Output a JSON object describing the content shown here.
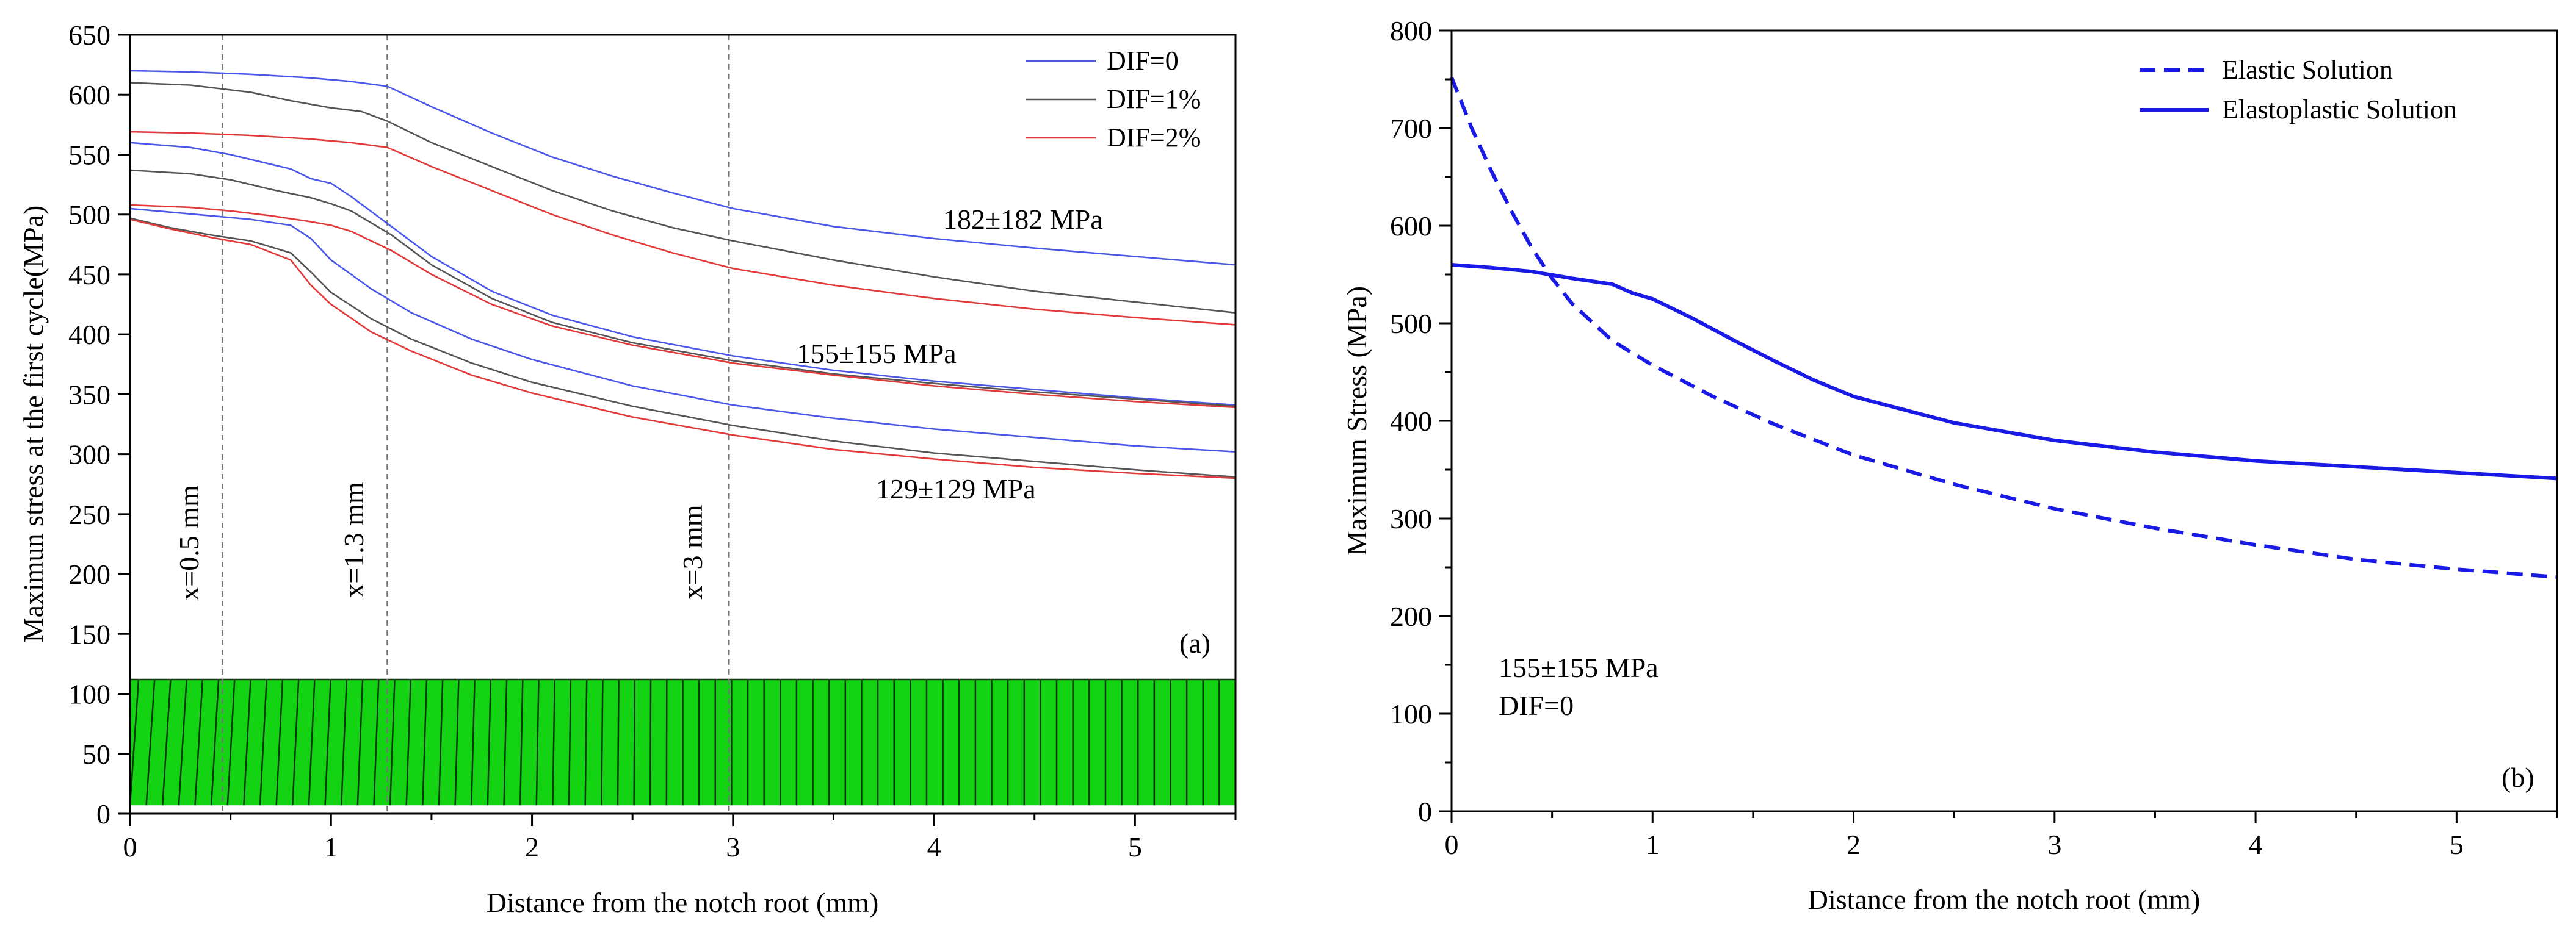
{
  "chart_data": [
    {
      "type": "line",
      "panel_label": "(a)",
      "xlabel": "Distance from the notch root (mm)",
      "ylabel": "Maximun stress at the first cycle(MPa)",
      "xlim": [
        0,
        5.5
      ],
      "ylim": [
        0,
        650
      ],
      "xticks": [
        0,
        1,
        2,
        3,
        4,
        5
      ],
      "yticks": [
        0,
        50,
        100,
        150,
        200,
        250,
        300,
        350,
        400,
        450,
        500,
        550,
        600,
        650
      ],
      "legend": {
        "placement": "top-right",
        "entries": [
          {
            "label": "DIF=0",
            "color": "#4a57e8"
          },
          {
            "label": "DIF=1%",
            "color": "#555555"
          },
          {
            "label": "DIF=2%",
            "color": "#e23a3a"
          }
        ]
      },
      "reference_lines": [
        {
          "x": 0.46,
          "label": "x=0.5 mm"
        },
        {
          "x": 1.28,
          "label": "x=1.3 mm"
        },
        {
          "x": 2.98,
          "label": "x=3 mm"
        }
      ],
      "group_labels": [
        "182±182 MPa",
        "155±155 MPa",
        "129±129 MPa"
      ],
      "mesh_band": {
        "ymin": 7,
        "ymax": 112,
        "color": "#13d313"
      },
      "series": [
        {
          "name": "182±182 MPa, DIF=0",
          "color": "#4a57e8",
          "x": [
            0,
            0.3,
            0.6,
            0.9,
            1.1,
            1.28,
            1.5,
            1.8,
            2.1,
            2.4,
            2.7,
            3.0,
            3.5,
            4.0,
            4.5,
            5.0,
            5.5
          ],
          "y": [
            620,
            619,
            617,
            614,
            611,
            607,
            590,
            568,
            548,
            532,
            518,
            505,
            490,
            480,
            472,
            465,
            458
          ]
        },
        {
          "name": "182±182 MPa, DIF=1%",
          "color": "#555555",
          "x": [
            0,
            0.3,
            0.6,
            0.8,
            1.0,
            1.15,
            1.28,
            1.5,
            1.8,
            2.1,
            2.4,
            2.7,
            3.0,
            3.5,
            4.0,
            4.5,
            5.0,
            5.5
          ],
          "y": [
            610,
            608,
            602,
            595,
            589,
            586,
            578,
            560,
            540,
            520,
            503,
            489,
            478,
            462,
            448,
            436,
            427,
            418
          ]
        },
        {
          "name": "182±182 MPa, DIF=2%",
          "color": "#e23a3a",
          "x": [
            0,
            0.3,
            0.6,
            0.9,
            1.1,
            1.28,
            1.5,
            1.8,
            2.1,
            2.4,
            2.7,
            3.0,
            3.5,
            4.0,
            4.5,
            5.0,
            5.5
          ],
          "y": [
            569,
            568,
            566,
            563,
            560,
            556,
            540,
            520,
            500,
            483,
            468,
            455,
            441,
            430,
            421,
            414,
            408
          ]
        },
        {
          "name": "155±155 MPa, DIF=0",
          "color": "#4a57e8",
          "x": [
            0,
            0.3,
            0.5,
            0.7,
            0.8,
            0.9,
            1.0,
            1.1,
            1.3,
            1.5,
            1.8,
            2.1,
            2.5,
            3.0,
            3.5,
            4.0,
            4.5,
            5.0,
            5.5
          ],
          "y": [
            560,
            556,
            550,
            542,
            538,
            530,
            526,
            515,
            490,
            465,
            436,
            416,
            398,
            382,
            370,
            361,
            354,
            347,
            341
          ]
        },
        {
          "name": "155±155 MPa, DIF=1%",
          "color": "#555555",
          "x": [
            0,
            0.3,
            0.5,
            0.7,
            0.9,
            1.0,
            1.1,
            1.3,
            1.5,
            1.8,
            2.1,
            2.5,
            3.0,
            3.5,
            4.0,
            4.5,
            5.0,
            5.5
          ],
          "y": [
            537,
            534,
            529,
            521,
            514,
            509,
            503,
            483,
            458,
            430,
            410,
            393,
            378,
            367,
            359,
            352,
            346,
            340
          ]
        },
        {
          "name": "155±155 MPa, DIF=2%",
          "color": "#e23a3a",
          "x": [
            0,
            0.3,
            0.5,
            0.7,
            0.9,
            1.0,
            1.1,
            1.3,
            1.5,
            1.8,
            2.1,
            2.5,
            3.0,
            3.5,
            4.0,
            4.5,
            5.0,
            5.5
          ],
          "y": [
            508,
            506,
            503,
            499,
            494,
            491,
            486,
            470,
            450,
            425,
            407,
            391,
            376,
            366,
            357,
            350,
            344,
            339
          ]
        },
        {
          "name": "129±129 MPa, DIF=0",
          "color": "#4a57e8",
          "x": [
            0,
            0.2,
            0.4,
            0.6,
            0.8,
            0.9,
            1.0,
            1.2,
            1.4,
            1.7,
            2.0,
            2.5,
            3.0,
            3.5,
            4.0,
            4.5,
            5.0,
            5.5
          ],
          "y": [
            505,
            502,
            499,
            496,
            491,
            480,
            462,
            438,
            418,
            396,
            379,
            357,
            341,
            330,
            321,
            314,
            307,
            302
          ]
        },
        {
          "name": "129±129 MPa, DIF=1%",
          "color": "#555555",
          "x": [
            0,
            0.2,
            0.4,
            0.6,
            0.8,
            0.9,
            1.0,
            1.2,
            1.4,
            1.7,
            2.0,
            2.5,
            3.0,
            3.5,
            4.0,
            4.5,
            5.0,
            5.5
          ],
          "y": [
            497,
            489,
            483,
            478,
            468,
            452,
            435,
            413,
            396,
            376,
            360,
            340,
            324,
            311,
            301,
            294,
            287,
            281
          ]
        },
        {
          "name": "129±129 MPa, DIF=2%",
          "color": "#e23a3a",
          "x": [
            0,
            0.2,
            0.4,
            0.6,
            0.8,
            0.9,
            1.0,
            1.2,
            1.4,
            1.7,
            2.0,
            2.5,
            3.0,
            3.5,
            4.0,
            4.5,
            5.0,
            5.5
          ],
          "y": [
            496,
            488,
            481,
            475,
            462,
            441,
            425,
            402,
            386,
            366,
            351,
            331,
            316,
            304,
            296,
            289,
            284,
            280
          ]
        }
      ]
    },
    {
      "type": "line",
      "panel_label": "(b)",
      "xlabel": "Distance from the notch root (mm)",
      "ylabel": "Maximum Stress (MPa)",
      "xlim": [
        0,
        5.5
      ],
      "ylim": [
        0,
        800
      ],
      "xticks": [
        0,
        1,
        2,
        3,
        4,
        5
      ],
      "yticks": [
        0,
        100,
        200,
        300,
        400,
        500,
        600,
        700,
        800
      ],
      "legend": {
        "placement": "top-right",
        "entries": [
          {
            "label": "Elastic Solution",
            "style": "dashed",
            "color": "#1a1ae6"
          },
          {
            "label": "Elastoplastic Solution",
            "style": "solid",
            "color": "#1a1ae6"
          }
        ]
      },
      "annotations": [
        "155±155 MPa",
        "DIF=0"
      ],
      "series": [
        {
          "name": "Elastic Solution",
          "style": "dashed",
          "color": "#1a1ae6",
          "x": [
            0,
            0.1,
            0.2,
            0.3,
            0.4,
            0.5,
            0.6,
            0.8,
            1.0,
            1.3,
            1.6,
            2.0,
            2.5,
            3.0,
            3.5,
            4.0,
            4.5,
            5.0,
            5.5
          ],
          "y": [
            752,
            700,
            655,
            614,
            577,
            546,
            520,
            482,
            457,
            425,
            397,
            365,
            335,
            310,
            290,
            273,
            258,
            248,
            240
          ]
        },
        {
          "name": "Elastoplastic Solution",
          "style": "solid",
          "color": "#1a1ae6",
          "x": [
            0,
            0.2,
            0.4,
            0.6,
            0.8,
            0.9,
            1.0,
            1.2,
            1.4,
            1.6,
            1.8,
            2.0,
            2.5,
            3.0,
            3.5,
            4.0,
            4.5,
            5.0,
            5.5
          ],
          "y": [
            560,
            557,
            553,
            546,
            540,
            531,
            525,
            505,
            483,
            462,
            442,
            425,
            398,
            380,
            368,
            359,
            353,
            347,
            341
          ]
        }
      ]
    }
  ]
}
